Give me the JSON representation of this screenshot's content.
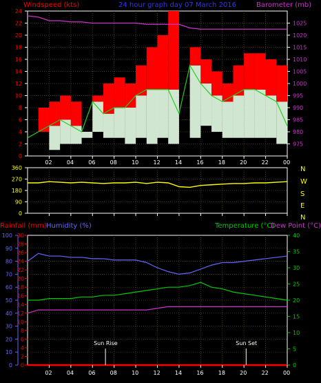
{
  "header": {
    "windspeed_label": "Windspeed (kts)",
    "graph_title": "24 hour graph day  07 March 2016",
    "barometer_label": "Barometer (mb)"
  },
  "mid_header": {
    "rainfall_label": "Rainfall (mm)",
    "humidity_label": "Humidity (%)",
    "temperature_label": "Temperature (°C)",
    "dewpoint_label": "Dew Point (°C)"
  },
  "annotations": {
    "sunrise": "Sun Rise",
    "sunset": "Sun Set",
    "sunset_time_overlap": "20"
  },
  "compass": [
    "N",
    "W",
    "S",
    "E",
    "N"
  ],
  "colors": {
    "windspeed": "#ff0000",
    "gust": "#e8ffe8",
    "wind_avg": "#22cc22",
    "barometer": "#cc33cc",
    "direction": "#ffff00",
    "humidity": "#6666ff",
    "temperature": "#00cc00",
    "dewpoint": "#cc33cc",
    "rainfall": "#ff0000",
    "compass": "#ffff00"
  },
  "chart_data": [
    {
      "type": "line",
      "name": "wind",
      "xlabel": "",
      "ylabel": "Windspeed (kts)",
      "y2label": "Barometer (mb)",
      "x_ticks": [
        "02",
        "04",
        "06",
        "08",
        "10",
        "12",
        "14",
        "16",
        "18",
        "20",
        "22",
        "00"
      ],
      "ylim": [
        0,
        24
      ],
      "y_ticks": [
        0,
        2,
        4,
        6,
        8,
        10,
        12,
        14,
        16,
        18,
        20,
        22,
        24
      ],
      "y2lim": [
        970,
        1030
      ],
      "y2_ticks": [
        975,
        980,
        985,
        990,
        995,
        1000,
        1005,
        1010,
        1015,
        1020,
        1025
      ],
      "hours": [
        0,
        1,
        2,
        3,
        4,
        5,
        6,
        7,
        8,
        9,
        10,
        11,
        12,
        13,
        14,
        15,
        16,
        17,
        18,
        19,
        20,
        21,
        22,
        23,
        24
      ],
      "wind_max": [
        3,
        8,
        9,
        10,
        9,
        4,
        10,
        12,
        13,
        12,
        15,
        18,
        20,
        24,
        7,
        18,
        16,
        14,
        12,
        15,
        17,
        17,
        16,
        15,
        6
      ],
      "wind_avg": [
        3,
        4,
        5,
        6,
        5,
        4,
        9,
        7,
        8,
        8,
        10,
        11,
        11,
        11,
        7,
        15,
        12,
        10,
        9,
        10,
        11,
        11,
        10,
        9,
        5
      ],
      "gust_min": [
        3,
        4,
        1,
        2,
        2,
        3,
        4,
        3,
        3,
        2,
        3,
        2,
        3,
        2,
        7,
        3,
        5,
        4,
        3,
        3,
        3,
        3,
        3,
        2,
        1
      ],
      "barometer": [
        1028,
        1027.5,
        1026,
        1026,
        1025.5,
        1025.5,
        1025,
        1025,
        1025,
        1025,
        1025,
        1024.5,
        1024.5,
        1024.5,
        1024.5,
        1023,
        1022.5,
        1022.5,
        1022.5,
        1022.5,
        1022.5,
        1022.5,
        1022.5,
        1022.5,
        1022.5
      ]
    },
    {
      "type": "line",
      "name": "direction",
      "xlabel": "",
      "ylabel": "",
      "ylim": [
        0,
        360
      ],
      "y_ticks": [
        0,
        90,
        180,
        270,
        360
      ],
      "hours": [
        0,
        1,
        2,
        3,
        4,
        5,
        6,
        7,
        8,
        9,
        10,
        11,
        12,
        13,
        14,
        15,
        16,
        17,
        18,
        19,
        20,
        21,
        22,
        23,
        24
      ],
      "degrees": [
        240,
        240,
        250,
        245,
        240,
        245,
        240,
        235,
        240,
        240,
        245,
        235,
        245,
        240,
        210,
        205,
        220,
        225,
        230,
        235,
        235,
        240,
        240,
        245,
        250
      ]
    },
    {
      "type": "line",
      "name": "climate",
      "xlabel": "",
      "y_left_outer": {
        "label": "Rainfall (mm)",
        "lim": [
          0,
          30
        ],
        "ticks": [
          0,
          2,
          4,
          6,
          8,
          10,
          12,
          14,
          16,
          18,
          20,
          22,
          24,
          26,
          28,
          30
        ]
      },
      "y_left_inner": {
        "label": "Humidity (%)",
        "lim": [
          0,
          100
        ],
        "ticks": [
          0,
          10,
          20,
          30,
          40,
          50,
          60,
          70,
          80,
          90,
          100
        ]
      },
      "y_right": {
        "label": "Temperature (°C)",
        "lim": [
          0,
          40
        ],
        "ticks": [
          0,
          5,
          10,
          15,
          20,
          25,
          30,
          35,
          40
        ]
      },
      "x_ticks": [
        "02",
        "04",
        "06",
        "08",
        "10",
        "12",
        "14",
        "16",
        "18",
        "20",
        "22",
        "00"
      ],
      "hours": [
        0,
        1,
        2,
        3,
        4,
        5,
        6,
        7,
        8,
        9,
        10,
        11,
        12,
        13,
        14,
        15,
        16,
        17,
        18,
        19,
        20,
        21,
        22,
        23,
        24
      ],
      "humidity": [
        80,
        86,
        84,
        84,
        83,
        83,
        82,
        82,
        81,
        81,
        81,
        79,
        75,
        72,
        70,
        71,
        74,
        77,
        79,
        79,
        80,
        81,
        82,
        83,
        84
      ],
      "temperature": [
        20,
        20,
        20.5,
        20.5,
        20.5,
        21,
        21,
        21.5,
        21.5,
        22,
        22.5,
        23,
        23.5,
        24,
        24,
        24.5,
        25.5,
        24,
        23.5,
        22.5,
        22,
        21.5,
        21,
        20.5,
        20
      ],
      "dewpoint": [
        16,
        17,
        17,
        17,
        17,
        17,
        17,
        17,
        17,
        17,
        17,
        17,
        17.5,
        18,
        18,
        18,
        18,
        18,
        18,
        18,
        18,
        18,
        18,
        18,
        18
      ],
      "rainfall": [
        0,
        0,
        0,
        0,
        0,
        0,
        0,
        0,
        0,
        0,
        0,
        0,
        0,
        0,
        0,
        0,
        0,
        0,
        0,
        0,
        0,
        0,
        0,
        0,
        0
      ],
      "sunrise_hour": 7.2,
      "sunset_hour": 20.2
    }
  ]
}
